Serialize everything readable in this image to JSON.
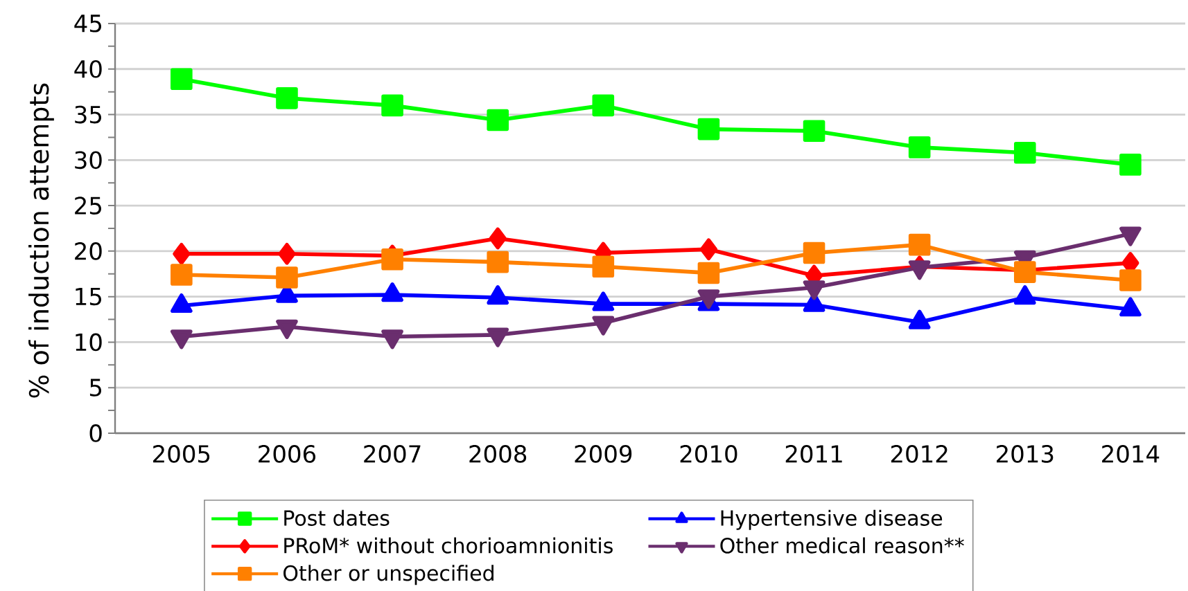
{
  "chart_data": {
    "type": "line",
    "ylabel": "% of induction attempts",
    "categories": [
      "2005",
      "2006",
      "2007",
      "2008",
      "2009",
      "2010",
      "2011",
      "2012",
      "2013",
      "2014"
    ],
    "series": [
      {
        "name": "Post dates",
        "color": "#00ff00",
        "marker": "square",
        "values": [
          38.9,
          36.8,
          36.0,
          34.4,
          36.0,
          33.4,
          33.2,
          31.4,
          30.8,
          29.5
        ]
      },
      {
        "name": "Hypertensive disease",
        "color": "#0000ff",
        "marker": "triangle",
        "values": [
          14.0,
          15.1,
          15.2,
          14.9,
          14.2,
          14.2,
          14.1,
          12.2,
          14.9,
          13.6
        ]
      },
      {
        "name": "PRoM* without chorioamnionitis",
        "color": "#ff0000",
        "marker": "diamond",
        "values": [
          19.7,
          19.7,
          19.5,
          21.4,
          19.8,
          20.2,
          17.3,
          18.3,
          17.9,
          18.7
        ]
      },
      {
        "name": "Other medical reason**",
        "color": "#6a2e6e",
        "marker": "triangle_down",
        "values": [
          10.6,
          11.7,
          10.6,
          10.8,
          12.1,
          15.0,
          16.0,
          18.2,
          19.3,
          21.9
        ]
      },
      {
        "name": "Other or unspecified",
        "color": "#ff8000",
        "marker": "square",
        "values": [
          17.4,
          17.1,
          19.1,
          18.8,
          18.3,
          17.6,
          19.8,
          20.7,
          17.7,
          16.8
        ]
      }
    ],
    "ylim": [
      0,
      45
    ],
    "yticks": [
      0,
      {
        "value": 2.5,
        "label": null
      },
      5,
      {
        "value": 7.5,
        "label": null
      },
      10,
      {
        "value": 12.5,
        "label": null
      },
      15,
      {
        "value": 17.5,
        "label": null
      },
      20,
      {
        "value": 22.5,
        "label": null
      },
      25,
      {
        "value": 27.5,
        "label": null
      },
      30,
      {
        "value": 32.5,
        "label": null
      },
      35,
      {
        "value": 37.5,
        "label": null
      },
      40,
      {
        "value": 42.5,
        "label": null
      },
      45
    ],
    "grid": "y",
    "legend": "bottom",
    "line_style": "solid"
  }
}
